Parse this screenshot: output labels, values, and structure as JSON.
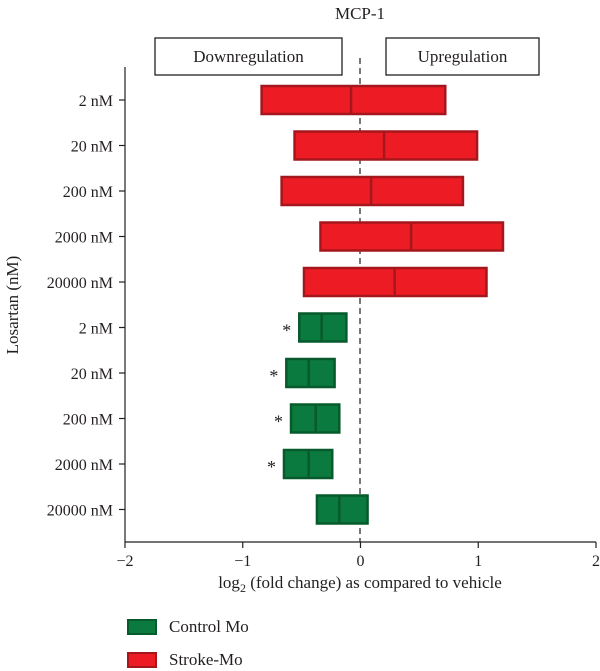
{
  "chart_data": {
    "type": "bar",
    "subtype": "floating-range-with-median",
    "title": "MCP-1",
    "xlabel_main": "log",
    "xlabel_sub": "2",
    "xlabel_rest": " (fold change) as compared to vehicle",
    "ylabel": "Losartan (nM)",
    "xlim": [
      -2,
      2
    ],
    "xticks": [
      "−2",
      "−1",
      "0",
      "1",
      "2"
    ],
    "xtick_values": [
      -2,
      -1,
      0,
      1,
      2
    ],
    "reference_line": 0,
    "grid": false,
    "legend_position": "bottom-left",
    "header_boxes": {
      "left": "Downregulation",
      "right": "Upregulation"
    },
    "categories": [
      "2 nM",
      "20 nM",
      "200 nM",
      "2000 nM",
      "20000 nM",
      "2 nM",
      "20 nM",
      "200 nM",
      "2000 nM",
      "20000 nM"
    ],
    "series": [
      {
        "name": "Stroke-Mo",
        "color": "#ed1c24",
        "border": "#a5171d",
        "rows": [
          0,
          1,
          2,
          3,
          4
        ],
        "ranges": [
          {
            "low": -0.84,
            "mid": -0.08,
            "high": 0.72,
            "sig": false
          },
          {
            "low": -0.56,
            "mid": 0.2,
            "high": 0.99,
            "sig": false
          },
          {
            "low": -0.67,
            "mid": 0.09,
            "high": 0.87,
            "sig": false
          },
          {
            "low": -0.34,
            "mid": 0.43,
            "high": 1.21,
            "sig": false
          },
          {
            "low": -0.48,
            "mid": 0.29,
            "high": 1.07,
            "sig": false
          }
        ]
      },
      {
        "name": "Control Mo",
        "color": "#0b7a3e",
        "border": "#075a2c",
        "rows": [
          5,
          6,
          7,
          8,
          9
        ],
        "ranges": [
          {
            "low": -0.52,
            "mid": -0.33,
            "high": -0.12,
            "sig": true
          },
          {
            "low": -0.63,
            "mid": -0.44,
            "high": -0.22,
            "sig": true
          },
          {
            "low": -0.59,
            "mid": -0.38,
            "high": -0.18,
            "sig": true
          },
          {
            "low": -0.65,
            "mid": -0.44,
            "high": -0.24,
            "sig": true
          },
          {
            "low": -0.37,
            "mid": -0.18,
            "high": 0.06,
            "sig": false
          }
        ]
      }
    ],
    "significance_marker": "*"
  },
  "legend": {
    "items": [
      {
        "label": "Control Mo",
        "color": "#0b7a3e",
        "border": "#075a2c"
      },
      {
        "label": "Stroke-Mo",
        "color": "#ed1c24",
        "border": "#a5171d"
      }
    ]
  }
}
